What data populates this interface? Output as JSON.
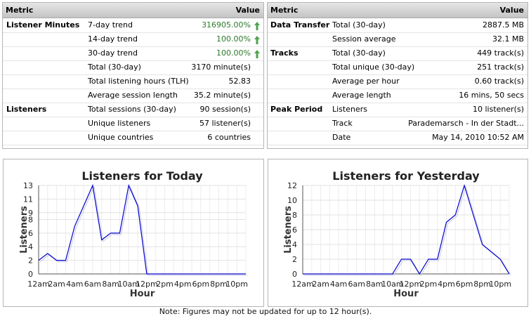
{
  "tables": [
    {
      "columns": [
        "Metric",
        "Value"
      ],
      "rows": [
        {
          "group": "Listener Minutes",
          "metric": "7-day trend",
          "value": "316905.00%",
          "trend": "up"
        },
        {
          "metric": "14-day trend",
          "value": "100.00%",
          "trend": "up"
        },
        {
          "metric": "30-day trend",
          "value": "100.00%",
          "trend": "up"
        },
        {
          "metric": "Total (30-day)",
          "value": "3170 minute(s)"
        },
        {
          "metric": "Total listening hours (TLH)",
          "value": "52.83"
        },
        {
          "metric": "Average session length",
          "value": "35.2 minute(s)"
        },
        {
          "group": "Listeners",
          "metric": "Total sessions (30-day)",
          "value": "90 session(s)"
        },
        {
          "metric": "Unique listeners",
          "value": "57 listener(s)"
        },
        {
          "metric": "Unique countries",
          "value": "6 countries"
        }
      ]
    },
    {
      "columns": [
        "Metric",
        "Value"
      ],
      "rows": [
        {
          "group": "Data Transfer",
          "metric": "Total (30-day)",
          "value": "2887.5 MB"
        },
        {
          "metric": "Session average",
          "value": "32.1 MB"
        },
        {
          "group": "Tracks",
          "metric": "Total (30-day)",
          "value": "449 track(s)"
        },
        {
          "metric": "Total unique (30-day)",
          "value": "251 track(s)"
        },
        {
          "metric": "Average per hour",
          "value": "0.60 track(s)"
        },
        {
          "metric": "Average length",
          "value": "16 mins, 50 secs"
        },
        {
          "group": "Peak Period",
          "metric": "Listeners",
          "value": "10 listener(s)"
        },
        {
          "metric": "Track",
          "value": "Parademarsch - In der Stadt..."
        },
        {
          "metric": "Date",
          "value": "May 14, 2010 10:52 AM"
        }
      ]
    }
  ],
  "chart_data": [
    {
      "type": "line",
      "title": "Listeners for Today",
      "y_label": "Listeners",
      "x_label": "Hour",
      "color": "#0000cc",
      "categories": [
        "12am",
        null,
        "2am",
        null,
        "4am",
        null,
        "6am",
        null,
        "8am",
        null,
        "10am",
        null,
        "12pm",
        null,
        "2pm",
        null,
        "4pm",
        null,
        "6pm",
        null,
        "8pm",
        null,
        "10pm",
        null
      ],
      "values": [
        2,
        3,
        2,
        2,
        7,
        10,
        13,
        5,
        6,
        6,
        13,
        10,
        0,
        0,
        0,
        0,
        0,
        0,
        0,
        0,
        0,
        0,
        0,
        0
      ],
      "ylim": [
        0,
        13
      ],
      "yticks": [
        0,
        2,
        4,
        6,
        8,
        9,
        11,
        13
      ],
      "grid": true
    },
    {
      "type": "line",
      "title": "Listeners for Yesterday",
      "y_label": "Listeners",
      "x_label": "Hour",
      "color": "#0000cc",
      "categories": [
        "12am",
        null,
        "2am",
        null,
        "4am",
        null,
        "6am",
        null,
        "8am",
        null,
        "10am",
        null,
        "12pm",
        null,
        "2pm",
        null,
        "4pm",
        null,
        "6pm",
        null,
        "8pm",
        null,
        "10pm",
        null
      ],
      "values": [
        0,
        0,
        0,
        0,
        0,
        0,
        0,
        0,
        0,
        0,
        0,
        2,
        2,
        0,
        2,
        2,
        7,
        8,
        12,
        8,
        4,
        3,
        2,
        0
      ],
      "ylim": [
        0,
        12
      ],
      "yticks": [
        0,
        2,
        4,
        6,
        8,
        10,
        12
      ],
      "grid": true
    }
  ],
  "note": "Note: Figures may not be updated for up to 12 hour(s)."
}
